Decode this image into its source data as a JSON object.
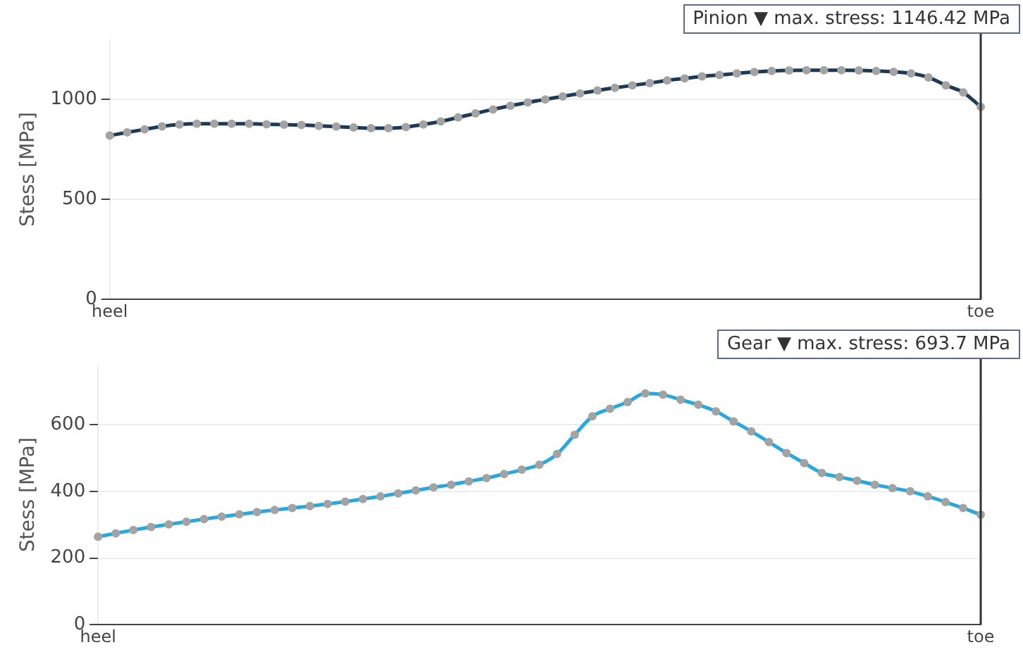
{
  "chart_data": [
    {
      "type": "line",
      "ylabel": "Stess [MPa]",
      "categories": [
        "heel",
        null,
        null,
        null,
        null,
        null,
        null,
        null,
        null,
        null,
        null,
        null,
        null,
        null,
        null,
        null,
        null,
        null,
        null,
        null,
        null,
        null,
        null,
        null,
        null,
        null,
        null,
        null,
        null,
        null,
        null,
        null,
        null,
        null,
        null,
        null,
        null,
        null,
        null,
        null,
        null,
        null,
        null,
        null,
        null,
        null,
        null,
        null,
        null,
        null,
        "toe"
      ],
      "series": [
        {
          "color": "#1b3a57",
          "values": [
            819,
            835,
            850,
            865,
            875,
            878,
            878,
            878,
            878,
            876,
            874,
            872,
            868,
            864,
            860,
            856,
            856,
            862,
            875,
            890,
            910,
            930,
            950,
            968,
            985,
            1000,
            1015,
            1030,
            1045,
            1058,
            1070,
            1082,
            1095,
            1105,
            1115,
            1122,
            1130,
            1137,
            1142,
            1145,
            1146,
            1146,
            1146,
            1145,
            1142,
            1138,
            1130,
            1110,
            1070,
            1035,
            963
          ]
        }
      ],
      "ylim": [
        0,
        1300
      ],
      "yticks": [
        0,
        500,
        1000
      ],
      "grid": true,
      "legend": false,
      "marker": "circle",
      "line_style": "solid",
      "ref_lines": [
        {
          "axis": "x",
          "value": "toe",
          "color": "#333333"
        }
      ],
      "annotations": [
        "Pinion ▼ max. stress: 1146.42 MPa"
      ]
    },
    {
      "type": "line",
      "ylabel": "Stess [MPa]",
      "categories": [
        "heel",
        null,
        null,
        null,
        null,
        null,
        null,
        null,
        null,
        null,
        null,
        null,
        null,
        null,
        null,
        null,
        null,
        null,
        null,
        null,
        null,
        null,
        null,
        null,
        null,
        null,
        null,
        null,
        null,
        null,
        null,
        null,
        null,
        null,
        null,
        null,
        null,
        null,
        null,
        null,
        null,
        null,
        null,
        null,
        null,
        null,
        null,
        null,
        null,
        null,
        "toe"
      ],
      "series": [
        {
          "color": "#29a8e0",
          "values": [
            264,
            274,
            284,
            293,
            301,
            309,
            317,
            324,
            331,
            338,
            344,
            350,
            356,
            362,
            369,
            377,
            385,
            394,
            403,
            412,
            420,
            430,
            440,
            452,
            465,
            480,
            512,
            570,
            625,
            648,
            668,
            693.7,
            690,
            675,
            660,
            640,
            610,
            580,
            548,
            515,
            485,
            455,
            443,
            432,
            420,
            410,
            400,
            385,
            368,
            350,
            330
          ]
        }
      ],
      "ylim": [
        0,
        780
      ],
      "yticks": [
        0,
        200,
        400,
        600
      ],
      "grid": true,
      "legend": false,
      "marker": "circle",
      "line_style": "solid",
      "ref_lines": [
        {
          "axis": "x",
          "value": "toe",
          "color": "#333333"
        }
      ],
      "annotations": [
        "Gear ▼ max. stress: 693.7 MPa"
      ]
    }
  ]
}
